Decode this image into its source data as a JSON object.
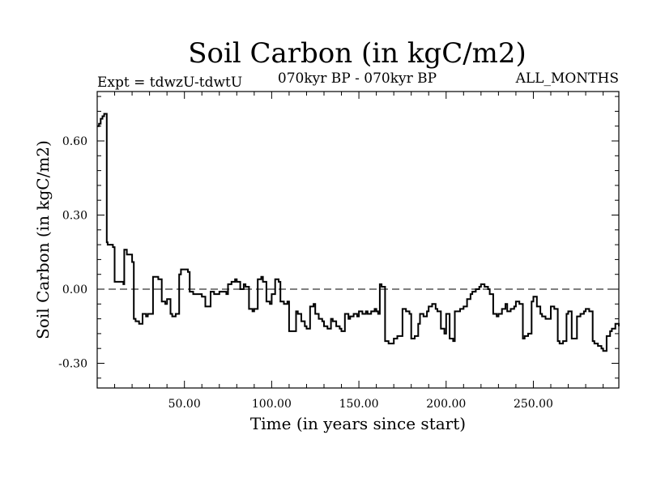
{
  "chart_data": {
    "type": "line",
    "title": "Soil Carbon (in kgC/m2)",
    "subtitle_left": "Expt = tdwzU-tdwtU",
    "subtitle_center": "070kyr BP - 070kyr BP",
    "subtitle_right": "ALL_MONTHS",
    "xlabel": "Time (in years since start)",
    "ylabel": "Soil Carbon (in kgC/m2)",
    "xlim": [
      0,
      299
    ],
    "ylim": [
      -0.4,
      0.8
    ],
    "x_ticks": [
      {
        "value": 50,
        "label": "50.00"
      },
      {
        "value": 100,
        "label": "100.00"
      },
      {
        "value": 150,
        "label": "150.00"
      },
      {
        "value": 200,
        "label": "200.00"
      },
      {
        "value": 250,
        "label": "250.00"
      }
    ],
    "y_ticks": [
      {
        "value": 0.6,
        "label": "0.60"
      },
      {
        "value": 0.3,
        "label": "0.30"
      },
      {
        "value": 0.0,
        "label": "0.00"
      },
      {
        "value": -0.3,
        "label": "-0.30"
      }
    ],
    "zero_line": true,
    "series": [
      {
        "name": "tdwzU-tdwtU",
        "x": [
          0,
          1,
          2,
          3,
          4,
          5,
          5.5,
          6,
          7,
          8,
          9,
          10,
          10.5,
          12,
          15,
          15.5,
          17,
          20,
          21,
          22,
          24,
          25,
          26,
          28,
          29,
          30,
          32,
          34,
          35,
          37,
          39,
          40,
          42,
          43,
          45,
          47,
          48,
          50,
          52,
          53,
          55,
          58,
          60,
          62,
          65,
          67,
          70,
          72,
          74,
          75,
          77,
          79,
          80,
          82,
          84,
          85,
          87,
          89,
          90,
          92,
          94,
          95,
          97,
          99,
          100,
          102,
          104,
          105,
          107,
          109,
          110,
          112,
          114,
          115,
          117,
          119,
          120,
          122,
          124,
          125,
          127,
          129,
          130,
          132,
          134,
          135,
          137,
          139,
          140,
          142,
          144,
          145,
          147,
          149,
          150,
          152,
          154,
          155,
          157,
          159,
          160,
          161,
          162,
          163,
          165,
          167,
          170,
          172,
          174,
          175,
          177,
          179,
          180,
          182,
          184,
          185,
          187,
          189,
          190,
          192,
          194,
          195,
          197,
          199,
          200,
          202,
          204,
          205,
          208,
          210,
          212,
          214,
          215,
          217,
          219,
          220,
          222,
          224,
          225,
          227,
          229,
          230,
          232,
          234,
          235,
          237,
          239,
          240,
          242,
          244,
          245,
          247,
          249,
          250,
          252,
          254,
          255,
          257,
          259,
          260,
          262,
          264,
          265,
          267,
          269,
          270,
          272,
          274,
          275,
          277,
          279,
          280,
          282,
          284,
          285,
          287,
          289,
          290,
          292,
          294,
          295,
          297,
          299
        ],
        "values": [
          0.66,
          0.67,
          0.69,
          0.7,
          0.71,
          0.71,
          0.19,
          0.18,
          0.18,
          0.18,
          0.17,
          0.03,
          0.03,
          0.03,
          0.02,
          0.16,
          0.14,
          0.11,
          -0.12,
          -0.13,
          -0.14,
          -0.14,
          -0.1,
          -0.11,
          -0.1,
          -0.1,
          0.05,
          0.05,
          0.04,
          -0.05,
          -0.06,
          -0.04,
          -0.1,
          -0.11,
          -0.1,
          0.06,
          0.08,
          0.08,
          0.07,
          -0.01,
          -0.02,
          -0.02,
          -0.03,
          -0.07,
          -0.01,
          -0.02,
          -0.01,
          -0.01,
          -0.02,
          0.02,
          0.03,
          0.04,
          0.03,
          0.0,
          0.02,
          0.01,
          -0.08,
          -0.09,
          -0.08,
          0.04,
          0.05,
          0.03,
          -0.05,
          -0.06,
          -0.02,
          0.04,
          0.03,
          -0.05,
          -0.06,
          -0.05,
          -0.17,
          -0.17,
          -0.09,
          -0.1,
          -0.13,
          -0.15,
          -0.16,
          -0.07,
          -0.06,
          -0.1,
          -0.12,
          -0.13,
          -0.15,
          -0.16,
          -0.12,
          -0.13,
          -0.15,
          -0.16,
          -0.17,
          -0.1,
          -0.12,
          -0.11,
          -0.1,
          -0.11,
          -0.09,
          -0.1,
          -0.09,
          -0.1,
          -0.09,
          -0.08,
          -0.09,
          -0.1,
          0.02,
          0.01,
          -0.21,
          -0.22,
          -0.2,
          -0.19,
          -0.19,
          -0.08,
          -0.09,
          -0.1,
          -0.2,
          -0.19,
          -0.14,
          -0.1,
          -0.11,
          -0.09,
          -0.07,
          -0.06,
          -0.08,
          -0.09,
          -0.16,
          -0.18,
          -0.1,
          -0.2,
          -0.21,
          -0.09,
          -0.08,
          -0.07,
          -0.04,
          -0.02,
          -0.01,
          0.0,
          0.01,
          0.02,
          0.01,
          0.0,
          -0.02,
          -0.1,
          -0.11,
          -0.1,
          -0.08,
          -0.06,
          -0.09,
          -0.08,
          -0.07,
          -0.05,
          -0.06,
          -0.2,
          -0.19,
          -0.18,
          -0.05,
          -0.03,
          -0.07,
          -0.1,
          -0.11,
          -0.12,
          -0.12,
          -0.07,
          -0.08,
          -0.21,
          -0.22,
          -0.21,
          -0.1,
          -0.09,
          -0.2,
          -0.2,
          -0.11,
          -0.1,
          -0.09,
          -0.08,
          -0.09,
          -0.21,
          -0.22,
          -0.23,
          -0.24,
          -0.25,
          -0.19,
          -0.17,
          -0.16,
          -0.14,
          -0.15
        ]
      }
    ]
  }
}
